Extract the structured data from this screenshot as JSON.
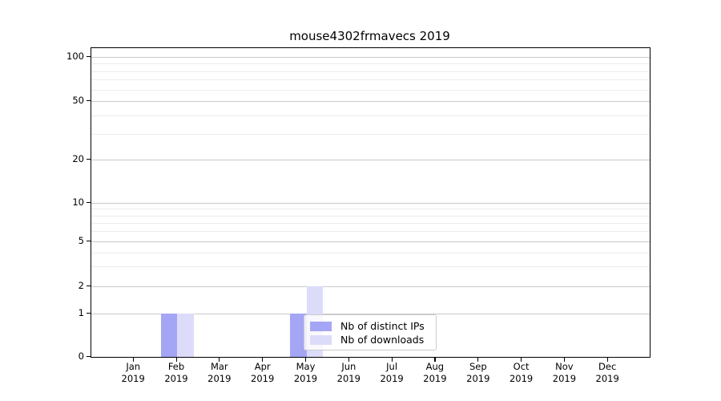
{
  "figure": {
    "background": "#ffffff"
  },
  "axes": {
    "y_tick_labels": [
      "100",
      "50",
      "20",
      "10",
      "5",
      "2",
      "1",
      "0"
    ],
    "x_months": [
      "Jan",
      "Feb",
      "Mar",
      "Apr",
      "May",
      "Jun",
      "Jul",
      "Aug",
      "Sep",
      "Oct",
      "Nov",
      "Dec"
    ],
    "x_year": "2019"
  },
  "legend": {
    "items": [
      {
        "label": "Nb of distinct IPs",
        "color": "#a5a5f5"
      },
      {
        "label": "Nb of downloads",
        "color": "#dcdcfa"
      }
    ]
  },
  "chart_data": {
    "type": "bar",
    "title": "mouse4302frmavecs 2019",
    "categories": [
      "Jan 2019",
      "Feb 2019",
      "Mar 2019",
      "Apr 2019",
      "May 2019",
      "Jun 2019",
      "Jul 2019",
      "Aug 2019",
      "Sep 2019",
      "Oct 2019",
      "Nov 2019",
      "Dec 2019"
    ],
    "series": [
      {
        "name": "Nb of distinct IPs",
        "color": "#a5a5f5",
        "values": [
          0,
          1,
          0,
          0,
          1,
          0,
          0,
          0,
          0,
          0,
          0,
          0
        ]
      },
      {
        "name": "Nb of downloads",
        "color": "#dcdcfa",
        "values": [
          0,
          1,
          0,
          0,
          2,
          0,
          0,
          0,
          0,
          0,
          0,
          0
        ]
      }
    ],
    "xlabel": "",
    "ylabel": "",
    "yscale": "symlog",
    "yticks": [
      0,
      1,
      2,
      5,
      10,
      20,
      50,
      100
    ],
    "ylim": [
      0,
      115
    ],
    "grid": "horizontal",
    "legend_position": "lower-right-inside"
  }
}
